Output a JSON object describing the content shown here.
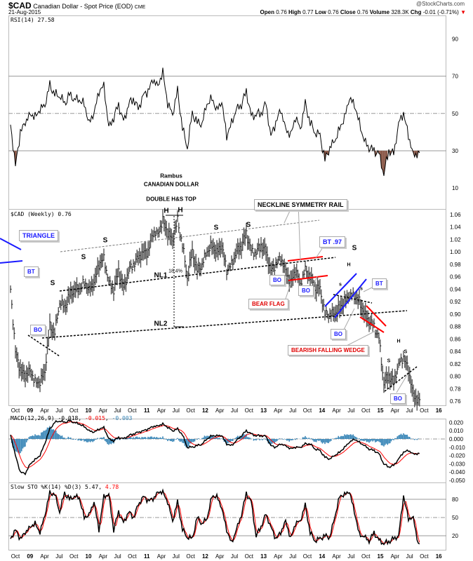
{
  "header": {
    "symbol": "$CAD",
    "name": "Canadian Dollar - Spot Price (EOD)",
    "exchange": "CME",
    "date": "21-Aug-2015",
    "brand": "@StockCharts.com",
    "open_label": "Open",
    "open": "0.76",
    "high_label": "High",
    "high": "0.77",
    "low_label": "Low",
    "low": "0.76",
    "close_label": "Close",
    "close": "0.76",
    "volume_label": "Volume",
    "volume": "328.3K",
    "chg_label": "Chg",
    "chg": "-0.01 (-0.71%)",
    "chg_arrow": "▼"
  },
  "titles": {
    "author": "Rambus",
    "subject": "CANADIAN DOLLAR",
    "pattern": "DOUBLE H&S TOP"
  },
  "annotations": {
    "s1": "S",
    "s2": "S",
    "s3": "S",
    "h1": "H",
    "h2": "H",
    "s4": "S",
    "s5": "S",
    "nl1": "NL1",
    "pct": "18.4%",
    "nl2": "NL2",
    "s6": "S",
    "h3": "H",
    "s7": "s",
    "s8": "s",
    "h4": "H",
    "s9": "S",
    "s10": "S",
    "triangle": "TRIANGLE",
    "bt1": "BT",
    "bo1": "BO",
    "neckline": "NECKLINE SYMMETRY RAIL",
    "bt97": "BT .97",
    "bo2": "BO",
    "bo3": "BO",
    "bear_flag": "BEAR FLAG",
    "bo4": "BO",
    "bt2": "BT",
    "wedge": "BEARISH FALLING WEDGE",
    "bo5": "BO"
  },
  "colors": {
    "price": "#555555",
    "red": "#ff0000",
    "blue": "#1a1aff",
    "hist": "#3a87b8",
    "rsi_fill": "#8b5a4a"
  },
  "chart_data": [
    {
      "type": "line",
      "title": "RSI(14) 27.58",
      "label": "RSI(14)",
      "last": "27.58",
      "ylim": [
        0,
        100
      ],
      "yticks": [
        "90",
        "70",
        "50",
        "30",
        "10"
      ],
      "levels": [
        70,
        50,
        30
      ],
      "start": "Sep 2008",
      "interval": "monthly",
      "values": [
        44,
        22,
        40,
        45,
        50,
        48,
        52,
        55,
        65,
        60,
        60,
        55,
        60,
        58,
        57,
        55,
        45,
        50,
        62,
        65,
        42,
        48,
        55,
        45,
        55,
        58,
        52,
        60,
        62,
        68,
        65,
        72,
        55,
        50,
        62,
        42,
        32,
        50,
        45,
        45,
        55,
        58,
        52,
        56,
        38,
        45,
        52,
        55,
        62,
        48,
        50,
        50,
        55,
        38,
        45,
        52,
        42,
        38,
        48,
        42,
        55,
        45,
        40,
        38,
        25,
        32,
        35,
        42,
        48,
        58,
        55,
        45,
        35,
        32,
        30,
        28,
        18,
        30,
        28,
        45,
        50,
        38,
        28,
        28
      ]
    },
    {
      "type": "bar",
      "title": "$CAD (Weekly) 0.76",
      "label": "$CAD (Weekly)",
      "last": "0.76",
      "ylim": [
        0.75,
        1.07
      ],
      "yticks": [
        "1.06",
        "1.04",
        "1.02",
        "1.00",
        "0.98",
        "0.96",
        "0.94",
        "0.92",
        "0.90",
        "0.88",
        "0.86",
        "0.84",
        "0.82",
        "0.80",
        "0.78",
        "0.76"
      ],
      "start": "Sep 2008",
      "interval": "monthly",
      "values": [
        0.94,
        0.84,
        0.81,
        0.8,
        0.81,
        0.79,
        0.79,
        0.81,
        0.88,
        0.87,
        0.92,
        0.91,
        0.93,
        0.94,
        0.94,
        0.95,
        0.94,
        0.95,
        0.98,
        0.99,
        0.95,
        0.94,
        0.97,
        0.94,
        0.97,
        0.98,
        0.99,
        1.0,
        1.0,
        1.03,
        1.03,
        1.05,
        1.03,
        1.02,
        1.05,
        1.01,
        0.96,
        1.0,
        0.97,
        0.98,
        1.0,
        1.01,
        1.0,
        1.01,
        0.97,
        0.98,
        1.0,
        1.01,
        1.03,
        1.0,
        1.0,
        1.01,
        1.0,
        0.97,
        0.98,
        0.99,
        0.97,
        0.95,
        0.97,
        0.95,
        0.97,
        0.96,
        0.94,
        0.94,
        0.9,
        0.9,
        0.9,
        0.91,
        0.92,
        0.93,
        0.93,
        0.92,
        0.9,
        0.89,
        0.88,
        0.86,
        0.79,
        0.8,
        0.79,
        0.82,
        0.83,
        0.81,
        0.77,
        0.76
      ],
      "xticks": [
        "Oct",
        "09",
        "Apr",
        "Jul",
        "Oct",
        "10",
        "Apr",
        "Jul",
        "Oct",
        "11",
        "Apr",
        "Jul",
        "Oct",
        "12",
        "Apr",
        "Jul",
        "Oct",
        "13",
        "Apr",
        "Jul",
        "Oct",
        "14",
        "Apr",
        "Jul",
        "Oct",
        "15",
        "Apr",
        "Jul",
        "Oct",
        "16"
      ]
    },
    {
      "type": "line",
      "title": "MACD(12,26,9)",
      "label": "MACD(12,26,9)",
      "macd": "-0.018",
      "signal": "-0.015",
      "hist": "-0.003",
      "ylim": [
        -0.052,
        0.025
      ],
      "yticks": [
        "0.020",
        "0.010",
        "0.000",
        "-0.010",
        "-0.020",
        "-0.030",
        "-0.040",
        "-0.050"
      ],
      "start": "Sep 2008",
      "interval": "monthly",
      "values": [
        0.005,
        -0.02,
        -0.04,
        -0.042,
        -0.03,
        -0.025,
        -0.02,
        -0.005,
        0.012,
        0.02,
        0.022,
        0.02,
        0.022,
        0.02,
        0.018,
        0.015,
        0.01,
        0.008,
        0.012,
        0.014,
        0.0,
        -0.002,
        0.002,
        0.0,
        0.004,
        0.006,
        0.008,
        0.01,
        0.012,
        0.015,
        0.016,
        0.018,
        0.014,
        0.01,
        0.012,
        0.005,
        -0.01,
        -0.01,
        -0.008,
        -0.006,
        0.0,
        0.004,
        0.004,
        0.004,
        -0.006,
        -0.008,
        -0.002,
        0.004,
        0.01,
        0.006,
        0.004,
        0.004,
        0.003,
        -0.008,
        -0.01,
        -0.006,
        -0.008,
        -0.012,
        -0.01,
        -0.01,
        -0.006,
        -0.006,
        -0.012,
        -0.014,
        -0.022,
        -0.024,
        -0.02,
        -0.016,
        -0.01,
        -0.004,
        0.0,
        -0.004,
        -0.008,
        -0.012,
        -0.014,
        -0.018,
        -0.03,
        -0.034,
        -0.032,
        -0.024,
        -0.016,
        -0.014,
        -0.018,
        -0.018
      ]
    },
    {
      "type": "line",
      "title": "Slow STO %K(14) %D(3)",
      "label": "Slow STO %K(14) %D(3)",
      "k": "5.47",
      "d": "4.78",
      "ylim": [
        0,
        100
      ],
      "yticks": [
        "80",
        "50",
        "20"
      ],
      "levels": [
        80,
        50,
        20
      ],
      "start": "Sep 2008",
      "interval": "monthly",
      "values": [
        15,
        30,
        15,
        25,
        35,
        40,
        25,
        55,
        90,
        88,
        60,
        90,
        80,
        85,
        82,
        50,
        55,
        75,
        30,
        85,
        87,
        30,
        60,
        40,
        60,
        50,
        70,
        85,
        78,
        80,
        92,
        92,
        75,
        45,
        75,
        30,
        18,
        15,
        50,
        40,
        48,
        85,
        85,
        65,
        30,
        8,
        30,
        55,
        90,
        75,
        20,
        35,
        55,
        35,
        15,
        25,
        45,
        15,
        40,
        45,
        70,
        25,
        12,
        15,
        20,
        18,
        50,
        85,
        88,
        92,
        60,
        22,
        18,
        12,
        25,
        12,
        8,
        10,
        15,
        20,
        85,
        48,
        50,
        5
      ]
    }
  ]
}
